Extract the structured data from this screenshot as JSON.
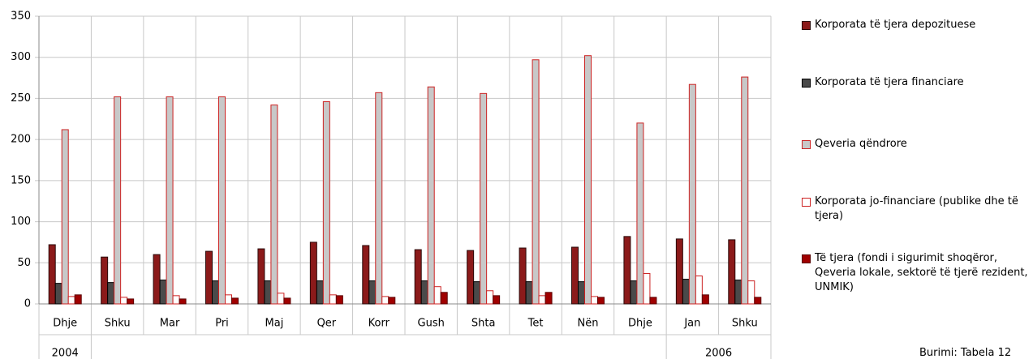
{
  "chart_data": {
    "type": "bar",
    "categories": [
      "Dhje",
      "Shku",
      "Mar",
      "Pri",
      "Maj",
      "Qer",
      "Korr",
      "Gush",
      "Shta",
      "Tet",
      "Nën",
      "Dhje",
      "Jan",
      "Shku"
    ],
    "year_groups": [
      {
        "label": "2004",
        "span": 1
      },
      {
        "label": null,
        "span": 11
      },
      {
        "label": "2006",
        "span": 2
      }
    ],
    "series": [
      {
        "name": "Korporata të tjera depozituese",
        "color": "#8b1a1a",
        "stroke": "#2a0a0a",
        "values": [
          72,
          57,
          60,
          64,
          67,
          75,
          71,
          66,
          65,
          68,
          69,
          82,
          79,
          78
        ]
      },
      {
        "name": "Korporata të tjera financiare",
        "color": "#4a4a4a",
        "stroke": "#000000",
        "values": [
          25,
          26,
          29,
          28,
          28,
          28,
          28,
          28,
          27,
          27,
          27,
          28,
          30,
          29
        ]
      },
      {
        "name": "Qeveria qëndrore",
        "color": "#c8c8c8",
        "stroke": "#cc2222",
        "values": [
          212,
          252,
          252,
          252,
          242,
          246,
          257,
          264,
          256,
          297,
          302,
          220,
          267,
          276
        ]
      },
      {
        "name": "Korporata jo-financiare (publike dhe të tjera)",
        "color": "#ffffff",
        "stroke": "#cc2222",
        "values": [
          9,
          8,
          10,
          11,
          13,
          11,
          9,
          21,
          16,
          10,
          9,
          37,
          34,
          28
        ]
      },
      {
        "name": "Të tjera (fondi i sigurimit shoqëror, Qeveria lokale, sektorë të tjerë rezident, UNMIK)",
        "color": "#a00000",
        "stroke": "#5a0000",
        "values": [
          11,
          6,
          6,
          7,
          7,
          10,
          8,
          14,
          10,
          14,
          8,
          8,
          11,
          8
        ]
      }
    ],
    "ylim": [
      0,
      350
    ],
    "yticks": [
      0,
      50,
      100,
      150,
      200,
      250,
      300,
      350
    ],
    "grid": true,
    "legend": "right",
    "source": "Burimi: Tabela 12"
  }
}
